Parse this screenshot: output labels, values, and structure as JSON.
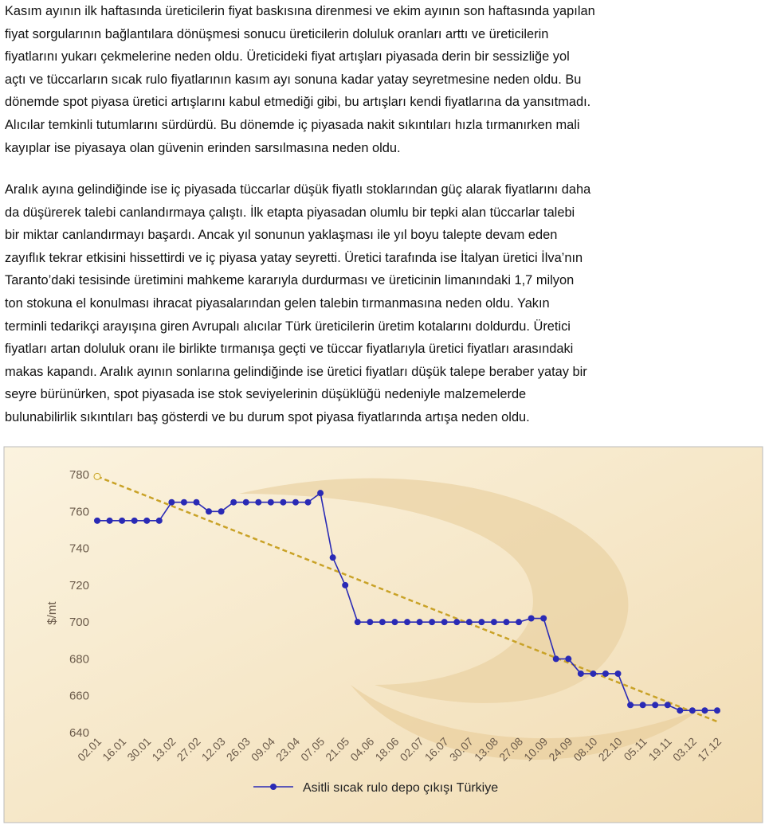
{
  "paragraphs": [
    [
      "Kasım ayının ilk haftasında üreticilerin fiyat baskısına direnmesi ve ekim ayının son haftasında yapılan",
      "fiyat sorgularının bağlantılara dönüşmesi sonucu üreticilerin doluluk oranları arttı ve üreticilerin",
      "fiyatlarını yukarı çekmelerine neden oldu. Üreticideki fiyat artışları piyasada derin bir sessizliğe yol",
      "açtı ve tüccarların sıcak rulo fiyatlarının kasım ayı sonuna kadar yatay seyretmesine neden oldu. Bu",
      "dönemde spot piyasa üretici artışlarını kabul etmediği gibi, bu artışları kendi fiyatlarına da yansıtmadı.",
      "Alıcılar temkinli tutumlarını sürdürdü. Bu dönemde iç piyasada nakit sıkıntıları hızla tırmanırken mali",
      "kayıplar ise piyasaya olan güvenin erinden sarsılmasına neden oldu."
    ],
    [
      "Aralık ayına gelindiğinde ise iç piyasada tüccarlar düşük fiyatlı stoklarından güç alarak fiyatlarını daha",
      "da düşürerek talebi canlandırmaya çalıştı. İlk etapta piyasadan olumlu bir tepki alan tüccarlar talebi",
      "bir miktar canlandırmayı başardı. Ancak yıl sonunun yaklaşması ile yıl boyu talepte devam eden",
      "zayıflık tekrar etkisini hissettirdi ve iç piyasa yatay seyretti. Üretici tarafında ise İtalyan üretici İlva’nın",
      "Taranto’daki tesisinde üretimini mahkeme kararıyla durdurması ve üreticinin limanındaki 1,7 milyon",
      "ton stokuna el konulması ihracat piyasalarından gelen talebin tırmanmasına neden oldu. Yakın",
      "terminli tedarikçi arayışına giren Avrupalı alıcılar Türk üreticilerin üretim kotalarını doldurdu. Üretici",
      "fiyatları artan doluluk oranı ile birlikte tırmanışa geçti ve tüccar fiyatlarıyla üretici fiyatları arasındaki",
      "makas kapandı. Aralık ayının sonlarına gelindiğinde ise üretici fiyatları düşük talepe beraber yatay bir",
      "seyre bürünürken, spot piyasada ise stok seviyelerinin düşüklüğü nedeniyle malzemelerde",
      "bulunabilirlik sıkıntıları baş gösterdi ve bu durum spot piyasa fiyatlarında artışa neden oldu."
    ]
  ],
  "chart_data": {
    "type": "line",
    "y_label": "$/mt",
    "categories": [
      "02.01",
      null,
      "16.01",
      null,
      "30.01",
      null,
      "13.02",
      null,
      "27.02",
      null,
      "12.03",
      null,
      "26.03",
      null,
      "09.04",
      null,
      "23.04",
      null,
      "07.05",
      null,
      "21.05",
      null,
      "04.06",
      null,
      "18.06",
      null,
      "02.07",
      null,
      "16.07",
      null,
      "30.07",
      null,
      "13.08",
      null,
      "27.08",
      null,
      "10.09",
      null,
      "24.09",
      null,
      "08.10",
      null,
      "22.10",
      null,
      "05.11",
      null,
      "19.11",
      null,
      "03.12",
      null,
      "17.12"
    ],
    "series": [
      {
        "name": "Asitli sıcak rulo depo çıkışı Türkiye",
        "color": "#2a2ab5",
        "values": [
          755,
          755,
          755,
          755,
          755,
          755,
          765,
          765,
          765,
          760,
          760,
          765,
          765,
          765,
          765,
          765,
          765,
          765,
          770,
          735,
          720,
          700,
          700,
          700,
          700,
          700,
          700,
          700,
          700,
          700,
          700,
          700,
          700,
          700,
          700,
          702,
          702,
          680,
          680,
          672,
          672,
          672,
          672,
          655,
          655,
          655,
          655,
          652,
          652,
          652,
          652
        ]
      }
    ],
    "trend": {
      "color": "#c9a227",
      "start": 779,
      "end": 646
    },
    "ylim": [
      640,
      780
    ],
    "yticks": [
      640,
      660,
      680,
      700,
      720,
      740,
      760,
      780
    ],
    "legend": "bottom"
  }
}
